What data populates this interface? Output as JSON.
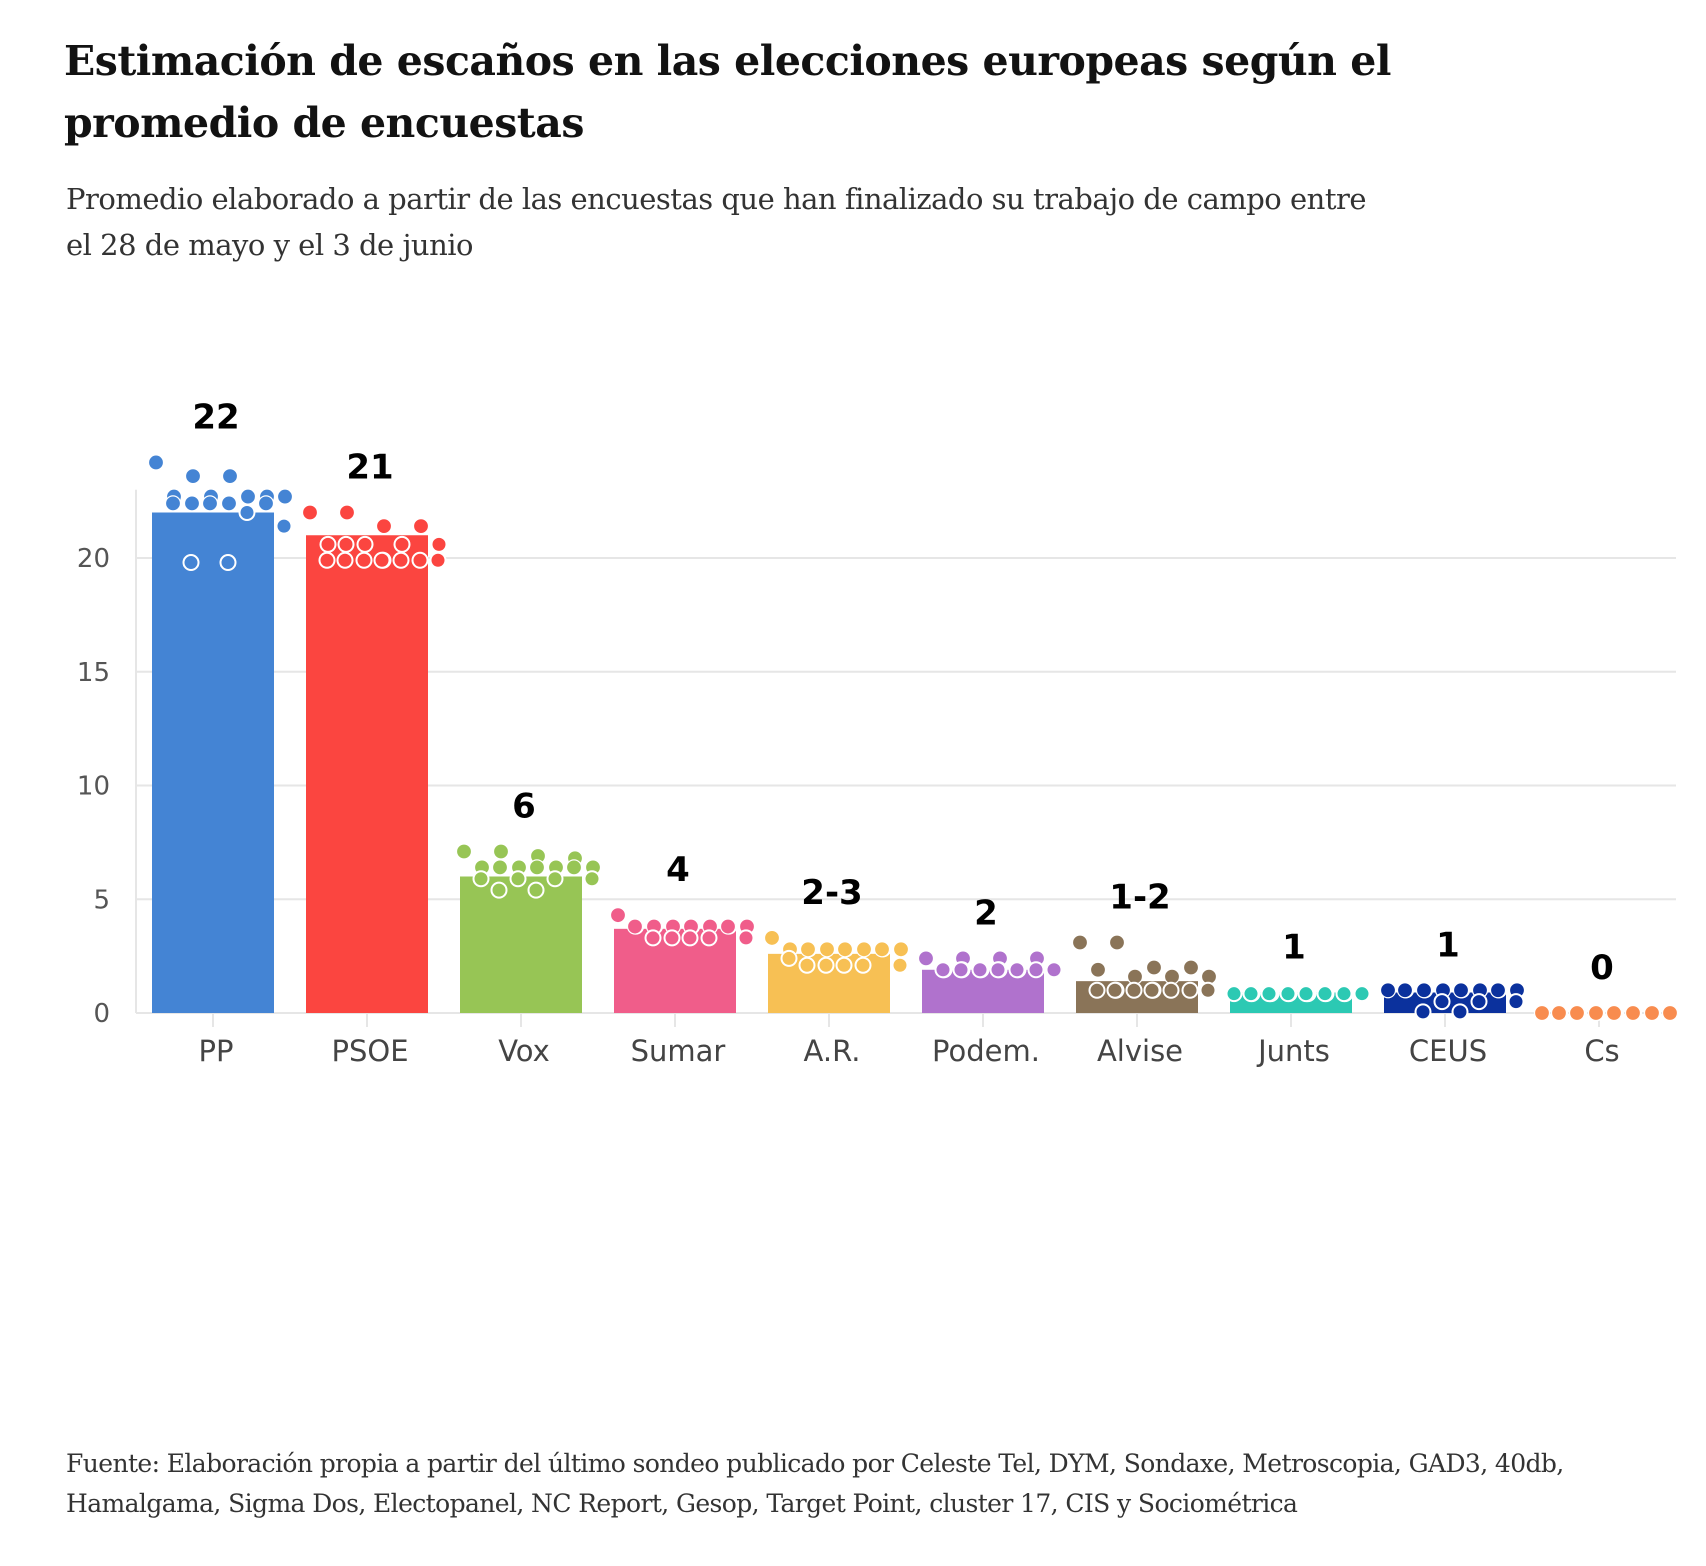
{
  "header": {
    "title": "Estimación de escaños en las elecciones europeas según el promedio de encuestas",
    "subtitle": "Promedio elaborado a partir de las encuestas que han finalizado su trabajo de campo entre el 28 de mayo y el 3 de junio"
  },
  "footer": {
    "source": "Fuente: Elaboración propia a partir del último sondeo publicado por Celeste Tel, DYM, Sondaxe, Metroscopia, GAD3, 40db, Hamalgama, Sigma Dos, Electopanel, NC Report, Gesop, Target Point, cluster 17, CIS y Sociométrica"
  },
  "chart_data": {
    "type": "bar",
    "title": "Estimación de escaños en las elecciones europeas según el promedio de encuestas",
    "subtitle": "Promedio elaborado a partir de las encuestas que han finalizado su trabajo de campo entre el 28 de mayo y el 3 de junio",
    "xlabel": "",
    "ylabel": "",
    "ylim": [
      0,
      23
    ],
    "yticks": [
      0,
      5,
      10,
      15,
      20
    ],
    "grid": true,
    "legend": "none",
    "categories": [
      "PP",
      "PSOE",
      "Vox",
      "Sumar",
      "A.R.",
      "Podem.",
      "Alvise",
      "Junts",
      "CEUS",
      "Cs"
    ],
    "values": [
      22,
      21,
      6,
      3.7,
      2.6,
      1.9,
      1.4,
      0.9,
      0.9,
      0
    ],
    "value_labels": [
      "22",
      "21",
      "6",
      "4",
      "2-3",
      "2",
      "1-2",
      "1",
      "1",
      "0"
    ],
    "colors": [
      "#4484d4",
      "#fb4540",
      "#97c555",
      "#f05d8a",
      "#f7c054",
      "#b072cd",
      "#8a7458",
      "#2cc9b3",
      "#0b319d",
      "#f88c4f"
    ],
    "poll_points": [
      [
        24.2,
        23.6,
        23.6,
        22.7,
        22.7,
        22.7,
        22.7,
        22.7,
        22.4,
        22.4,
        22.4,
        22.4,
        22.4,
        22.0,
        21.4,
        19.8,
        19.8
      ],
      [
        22.0,
        22.0,
        21.4,
        21.4,
        20.6,
        20.6,
        20.6,
        20.6,
        20.6,
        19.9,
        19.9,
        19.9,
        19.9,
        19.9,
        19.9,
        19.9,
        19.9
      ],
      [
        7.1,
        7.1,
        6.9,
        6.8,
        6.4,
        6.4,
        6.4,
        6.4,
        6.4,
        6.4,
        6.4,
        5.9,
        5.9,
        5.9,
        5.9,
        5.4,
        5.4
      ],
      [
        4.3,
        3.8,
        3.8,
        3.8,
        3.8,
        3.8,
        3.8,
        3.8,
        3.8,
        3.8,
        3.8,
        3.8,
        3.3,
        3.3,
        3.3,
        3.3,
        3.3
      ],
      [
        3.3,
        2.8,
        2.8,
        2.8,
        2.8,
        2.8,
        2.8,
        2.8,
        2.8,
        2.8,
        2.8,
        2.4,
        2.1,
        2.1,
        2.1,
        2.1,
        2.1
      ],
      [
        2.4,
        2.4,
        2.4,
        2.4,
        1.9,
        1.9,
        1.9,
        1.9,
        1.9,
        1.9,
        1.9,
        1.9,
        1.9,
        1.9,
        1.9,
        1.9,
        1.9
      ],
      [
        3.1,
        3.1,
        2.0,
        2.0,
        1.9,
        1.6,
        1.6,
        1.6,
        1.0,
        1.0,
        1.0,
        1.0,
        1.0,
        1.0,
        1.0,
        1.0,
        1.0
      ],
      [
        0.85,
        0.85,
        0.85,
        0.85,
        0.85,
        0.85,
        0.85,
        0.85,
        0.85,
        0.85,
        0.85,
        0.85,
        0.85,
        0.85,
        0.85,
        0.85,
        0.85
      ],
      [
        1.0,
        1.0,
        1.0,
        1.0,
        1.0,
        1.0,
        1.0,
        1.0,
        1.0,
        1.0,
        1.0,
        1.0,
        0.5,
        0.5,
        0.5,
        0.05,
        0.05
      ],
      [
        0,
        0,
        0,
        0,
        0,
        0,
        0,
        0,
        0,
        0,
        0,
        0,
        0,
        0,
        0,
        0,
        0
      ]
    ]
  }
}
